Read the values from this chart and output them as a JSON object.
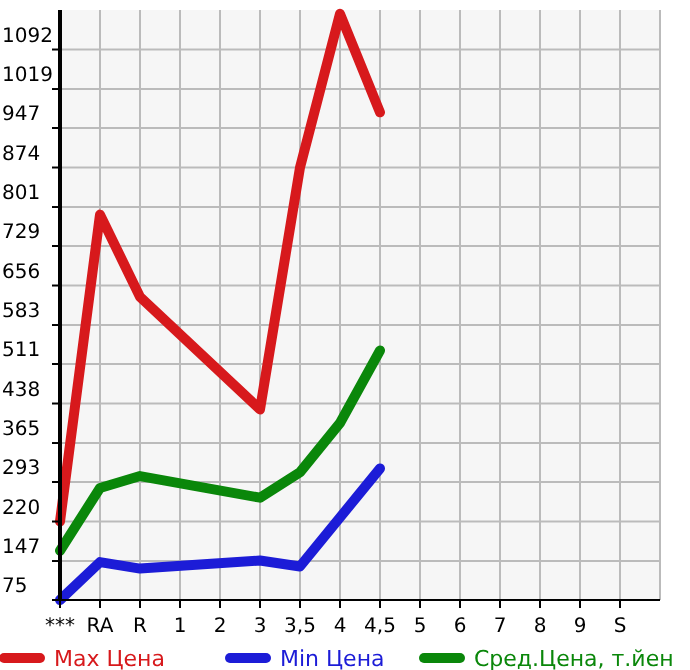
{
  "chart_data": {
    "type": "line",
    "categories": [
      "***",
      "RA",
      "R",
      "1",
      "2",
      "3",
      "3,5",
      "4",
      "4,5",
      "5",
      "6",
      "7",
      "8",
      "9",
      "S"
    ],
    "ylim": [
      75,
      1165
    ],
    "yticks": [
      75,
      147,
      220,
      293,
      365,
      438,
      511,
      583,
      656,
      729,
      801,
      874,
      947,
      1019,
      1092
    ],
    "grid": true,
    "legend": "bottom",
    "marker": "none",
    "line_style": "solid",
    "series": [
      {
        "name": "Max Цена",
        "color": "#d7191c",
        "values": [
          220,
          787,
          635,
          null,
          null,
          427,
          874,
          1158,
          976,
          null,
          null,
          null,
          null,
          null,
          null
        ]
      },
      {
        "name": "Min Цена",
        "color": "#1c1cd7",
        "values": [
          75,
          145,
          133,
          null,
          null,
          148,
          137,
          null,
          318,
          null,
          null,
          null,
          null,
          null,
          null
        ]
      },
      {
        "name": "Сред.Цена, т.йен",
        "color": "#0a870a",
        "values": [
          166,
          282,
          304,
          null,
          null,
          264,
          311,
          402,
          536,
          null,
          null,
          null,
          null,
          null,
          null
        ]
      }
    ]
  }
}
